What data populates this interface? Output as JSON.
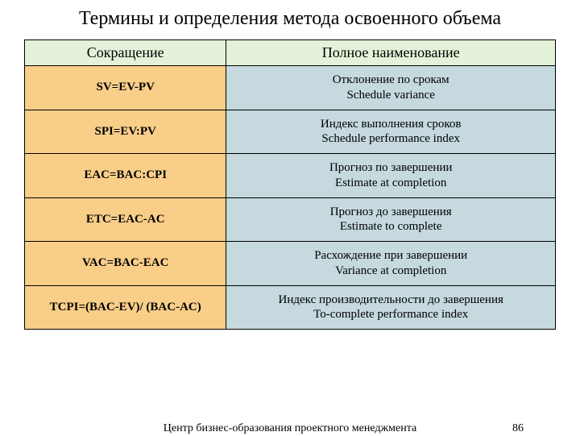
{
  "title": "Термины и определения метода освоенного объема",
  "columns": [
    "Сокращение",
    "Полное наименование"
  ],
  "header_bg_colors": [
    "#e3f2d8",
    "#e3f2d8"
  ],
  "row_bg_colors": [
    "#f9ce89",
    "#c5d9de"
  ],
  "rows": [
    {
      "abbr": "SV=EV-PV",
      "name_ru": "Отклонение по срокам",
      "name_en": "Schedule variance"
    },
    {
      "abbr": "SPI=EV:PV",
      "name_ru": "Индекс выполнения сроков",
      "name_en": "Schedule performance index"
    },
    {
      "abbr": "EAC=BAC:CPI",
      "name_ru": "Прогноз по завершении",
      "name_en": "Estimate at completion"
    },
    {
      "abbr": "ETC=EAC-AC",
      "name_ru": "Прогноз до завершения",
      "name_en": "Estimate to complete"
    },
    {
      "abbr": "VAC=BAC-EAC",
      "name_ru": "Расхождение при завершении",
      "name_en": "Variance at completion"
    },
    {
      "abbr": "TCPI=(BAC-EV)/ (BAC-AC)",
      "name_ru": "Индекс производительности до завершения",
      "name_en": "To-complete performance index"
    }
  ],
  "footer_center": "Центр бизнес-образования проектного менеджмента",
  "page_number": "86"
}
